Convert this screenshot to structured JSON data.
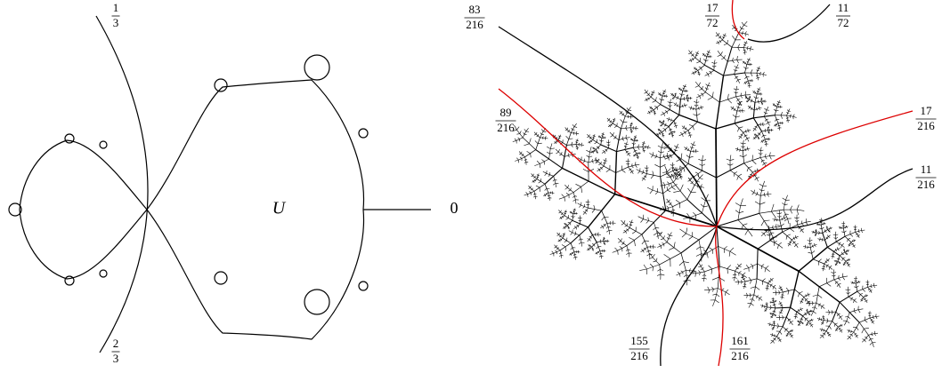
{
  "left": {
    "fractions": [
      {
        "numerator": "1",
        "denominator": "3"
      },
      {
        "numerator": "2",
        "denominator": "3"
      }
    ],
    "angle_label": "0",
    "region_label": "U"
  },
  "right": {
    "fractions": [
      {
        "numerator": "83",
        "denominator": "216"
      },
      {
        "numerator": "17",
        "denominator": "72"
      },
      {
        "numerator": "11",
        "denominator": "72"
      },
      {
        "numerator": "89",
        "denominator": "216"
      },
      {
        "numerator": "17",
        "denominator": "216"
      },
      {
        "numerator": "11",
        "denominator": "216"
      },
      {
        "numerator": "155",
        "denominator": "216"
      },
      {
        "numerator": "161",
        "denominator": "216"
      }
    ]
  }
}
